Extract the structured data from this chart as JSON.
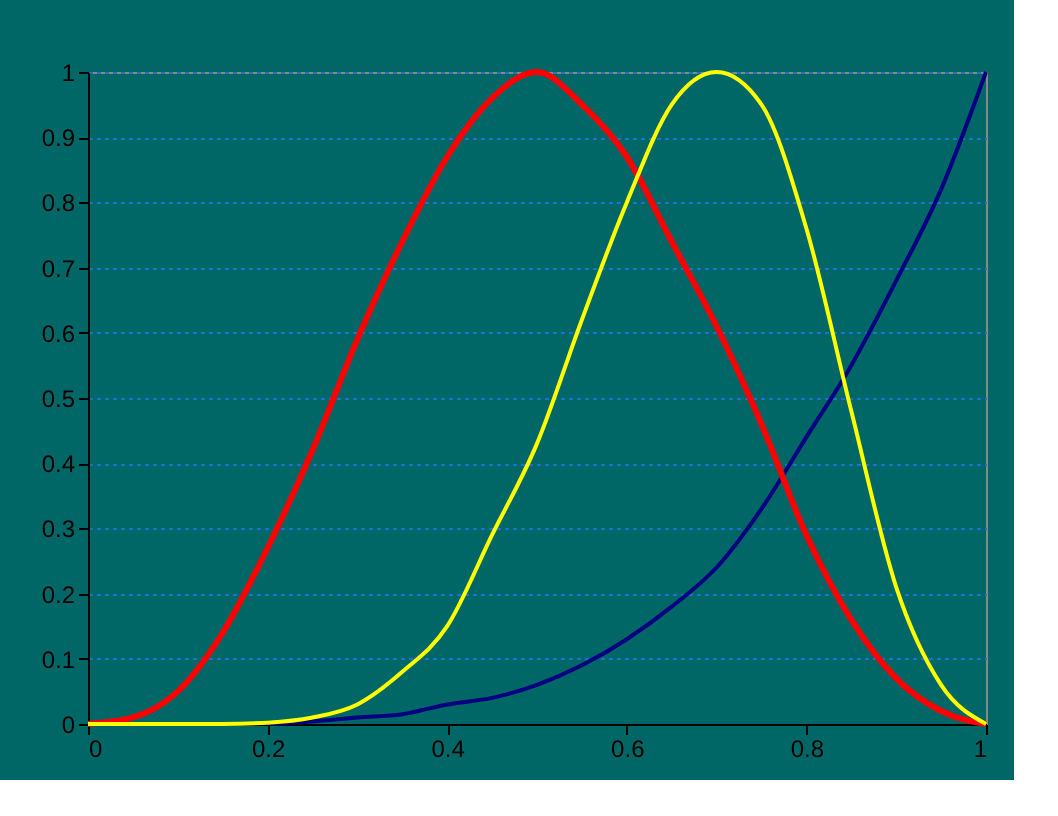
{
  "chart_data": {
    "type": "line",
    "x": [
      0,
      0.05,
      0.1,
      0.15,
      0.2,
      0.25,
      0.3,
      0.35,
      0.4,
      0.45,
      0.5,
      0.55,
      0.6,
      0.65,
      0.7,
      0.75,
      0.8,
      0.85,
      0.9,
      0.95,
      1
    ],
    "series": [
      {
        "color": "#ff0000",
        "values": [
          0,
          0.01,
          0.05,
          0.14,
          0.27,
          0.42,
          0.59,
          0.74,
          0.87,
          0.96,
          1,
          0.95,
          0.87,
          0.74,
          0.61,
          0.46,
          0.29,
          0.16,
          0.07,
          0.02,
          0
        ]
      },
      {
        "color": "#ffff00",
        "values": [
          0,
          0,
          0,
          0,
          0.002,
          0.01,
          0.03,
          0.08,
          0.15,
          0.29,
          0.43,
          0.62,
          0.8,
          0.95,
          1,
          0.95,
          0.76,
          0.48,
          0.21,
          0.06,
          0
        ]
      },
      {
        "color": "#000080",
        "values": [
          null,
          null,
          null,
          null,
          0,
          0.004,
          0.01,
          0.015,
          0.03,
          0.04,
          0.06,
          0.09,
          0.13,
          0.18,
          0.24,
          0.33,
          0.44,
          0.55,
          0.68,
          0.82,
          1
        ]
      }
    ],
    "xlim": [
      0,
      1
    ],
    "xticks": [
      0,
      0.2,
      0.4,
      0.6,
      0.8,
      1
    ],
    "ylim": [
      0,
      1
    ],
    "yticks": [
      0,
      0.1,
      0.2,
      0.3,
      0.4,
      0.5,
      0.6,
      0.7,
      0.8,
      0.9,
      1
    ],
    "grid": "y",
    "marker": "none",
    "line_style": "solid"
  }
}
